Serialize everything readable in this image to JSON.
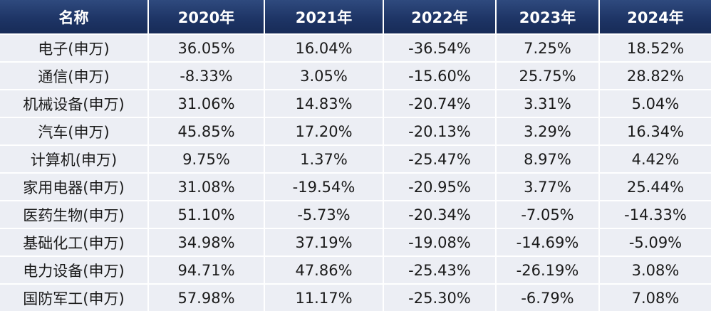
{
  "chart_data": {
    "type": "table",
    "columns": [
      "名称",
      "2020年",
      "2021年",
      "2022年",
      "2023年",
      "2024年"
    ],
    "rows": [
      [
        "电子(申万)",
        "36.05%",
        "16.04%",
        "-36.54%",
        "7.25%",
        "18.52%"
      ],
      [
        "通信(申万)",
        "-8.33%",
        "3.05%",
        "-15.60%",
        "25.75%",
        "28.82%"
      ],
      [
        "机械设备(申万)",
        "31.06%",
        "14.83%",
        "-20.74%",
        "3.31%",
        "5.04%"
      ],
      [
        "汽车(申万)",
        "45.85%",
        "17.20%",
        "-20.13%",
        "3.29%",
        "16.34%"
      ],
      [
        "计算机(申万)",
        "9.75%",
        "1.37%",
        "-25.47%",
        "8.97%",
        "4.42%"
      ],
      [
        "家用电器(申万)",
        "31.08%",
        "-19.54%",
        "-20.95%",
        "3.77%",
        "25.44%"
      ],
      [
        "医药生物(申万)",
        "51.10%",
        "-5.73%",
        "-20.34%",
        "-7.05%",
        "-14.33%"
      ],
      [
        "基础化工(申万)",
        "34.98%",
        "37.19%",
        "-19.08%",
        "-14.69%",
        "-5.09%"
      ],
      [
        "电力设备(申万)",
        "94.71%",
        "47.86%",
        "-25.43%",
        "-26.19%",
        "3.08%"
      ],
      [
        "国防军工(申万)",
        "57.98%",
        "11.17%",
        "-25.30%",
        "-6.79%",
        "7.08%"
      ]
    ]
  },
  "colors": {
    "header_bg": "#1e3566",
    "header_text": "#ffffff",
    "cell_bg": "#eceef4",
    "cell_text": "#1a1a1a"
  }
}
